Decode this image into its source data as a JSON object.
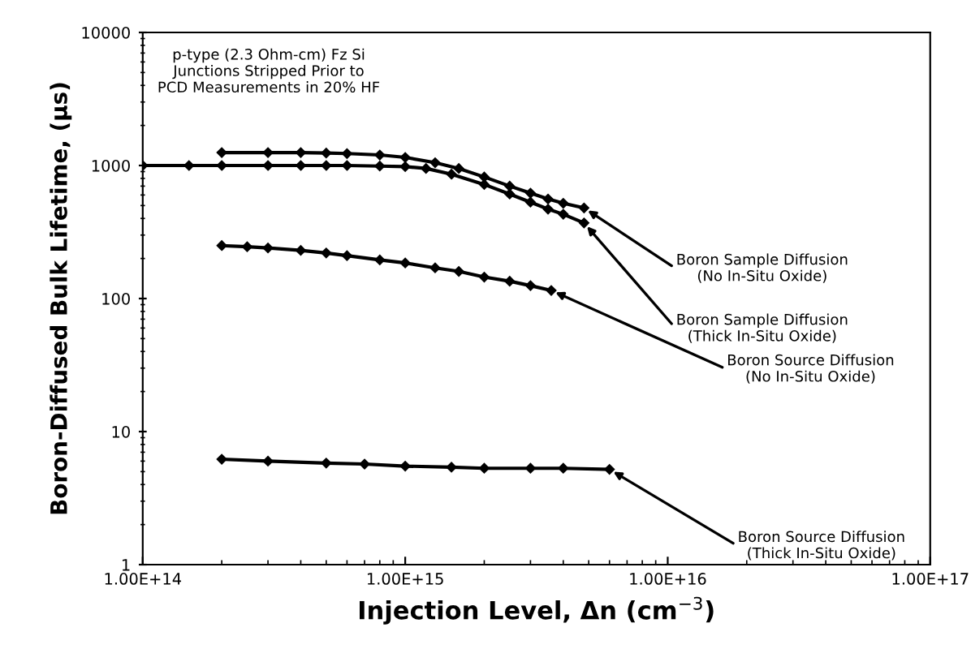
{
  "chart_data": {
    "type": "line",
    "xlabel": "Injection Level, Δn (cm$^{−3}$)",
    "ylabel": "Boron-Diffused Bulk Lifetime, (μs)",
    "log": "xy",
    "grid": false,
    "legend": false,
    "marker": "diamond",
    "line_style": "solid",
    "xlim": [
      100000000000000.0,
      1e+17
    ],
    "ylim": [
      1,
      10000
    ],
    "xticks": [
      {
        "value": 100000000000000.0,
        "label": "1.00E+14"
      },
      {
        "value": 1000000000000000.0,
        "label": "1.00E+15"
      },
      {
        "value": 1e+16,
        "label": "1.00E+16"
      },
      {
        "value": 1e+17,
        "label": "1.00E+17"
      }
    ],
    "yticks": [
      1,
      10,
      100,
      1000,
      10000
    ],
    "series": [
      {
        "color": "#000000",
        "x": [
          200000000000000.0,
          300000000000000.0,
          400000000000000.0,
          500000000000000.0,
          600000000000000.0,
          800000000000000.0,
          1000000000000000.0,
          1300000000000000.0,
          1600000000000000.0,
          2000000000000000.0,
          2500000000000000.0,
          3000000000000000.0,
          3500000000000000.0,
          4000000000000000.0,
          4800000000000000.0
        ],
        "values": [
          1250,
          1250,
          1250,
          1240,
          1230,
          1200,
          1150,
          1050,
          950,
          820,
          700,
          620,
          560,
          520,
          480
        ]
      },
      {
        "color": "#000000",
        "x": [
          100000000000000.0,
          150000000000000.0,
          200000000000000.0,
          300000000000000.0,
          400000000000000.0,
          500000000000000.0,
          600000000000000.0,
          800000000000000.0,
          1000000000000000.0,
          1200000000000000.0,
          1500000000000000.0,
          2000000000000000.0,
          2500000000000000.0,
          3000000000000000.0,
          3500000000000000.0,
          4000000000000000.0,
          4800000000000000.0
        ],
        "values": [
          1000,
          1000,
          1000,
          1000,
          1000,
          1000,
          1000,
          990,
          980,
          950,
          860,
          720,
          610,
          530,
          470,
          430,
          370
        ]
      },
      {
        "color": "#000000",
        "x": [
          200000000000000.0,
          250000000000000.0,
          300000000000000.0,
          400000000000000.0,
          500000000000000.0,
          600000000000000.0,
          800000000000000.0,
          1000000000000000.0,
          1300000000000000.0,
          1600000000000000.0,
          2000000000000000.0,
          2500000000000000.0,
          3000000000000000.0,
          3600000000000000.0
        ],
        "values": [
          250,
          245,
          240,
          230,
          220,
          210,
          195,
          185,
          170,
          160,
          145,
          135,
          125,
          115
        ]
      },
      {
        "color": "#000000",
        "x": [
          200000000000000.0,
          300000000000000.0,
          500000000000000.0,
          700000000000000.0,
          1000000000000000.0,
          1500000000000000.0,
          2000000000000000.0,
          3000000000000000.0,
          4000000000000000.0,
          6000000000000000.0
        ],
        "values": [
          6.2,
          6.0,
          5.8,
          5.7,
          5.5,
          5.4,
          5.3,
          5.3,
          5.3,
          5.2
        ]
      }
    ],
    "annotations": [
      "p-type (2.3 Ohm-cm) Fz Si\nJunctions Stripped Prior to\nPCD Measurements in 20% HF",
      {
        "text": "Boron Sample Diffusion\n(No In-Situ Oxide)",
        "x": 4800000000000000.0,
        "y": 480
      },
      {
        "text": "Boron Sample Diffusion\n(Thick In-Situ Oxide)",
        "x": 4800000000000000.0,
        "y": 370
      },
      {
        "text": "Boron Source Diffusion\n(No In-Situ Oxide)",
        "x": 3600000000000000.0,
        "y": 115
      },
      {
        "text": "Boron Source Diffusion\n(Thick In-Situ Oxide)",
        "x": 6000000000000000.0,
        "y": 5.2
      }
    ]
  }
}
